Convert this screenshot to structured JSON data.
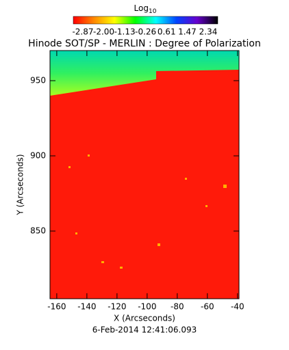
{
  "chart_data": {
    "type": "image",
    "title": "Hinode SOT/SP - MERLIN : Degree of Polarization",
    "colorbar": {
      "label": "Log",
      "label_subscript": "10",
      "clim": [
        -2.87,
        2.34
      ],
      "ticks": [
        -2.87,
        -2.0,
        -1.13,
        -0.26,
        0.61,
        1.47,
        2.34
      ],
      "colormap": [
        "#ff0000",
        "#ff8800",
        "#ffff00",
        "#00ff00",
        "#00ffff",
        "#0044ff",
        "#6600cc",
        "#000000"
      ]
    },
    "xlabel": "X (Arcseconds)",
    "ylabel": "Y (Arcseconds)",
    "annotation": "6-Feb-2014 12:41:06.093",
    "xlim": [
      -164.5,
      -39
    ],
    "xticks": [
      -160,
      -140,
      -120,
      -100,
      -80,
      -60,
      -40
    ],
    "ylim": [
      805,
      970
    ],
    "yticks": [
      850,
      900,
      950
    ]
  }
}
